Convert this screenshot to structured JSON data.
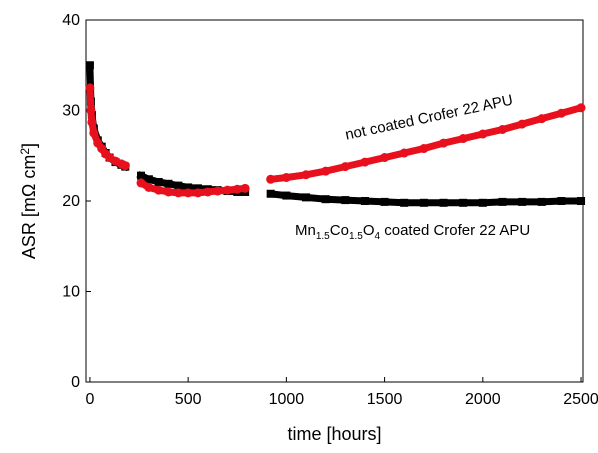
{
  "chart_data": {
    "type": "scatter",
    "xlabel": "time [hours]",
    "ylabel": "ASR [mΩ cm²]",
    "ylabel_parts": {
      "main": "ASR [mΩ cm",
      "sup": "2",
      "close": "]"
    },
    "xlim": [
      -20,
      2510
    ],
    "ylim": [
      0,
      40
    ],
    "xticks": [
      0,
      500,
      1000,
      1500,
      2000,
      2500
    ],
    "yticks": [
      0,
      10,
      20,
      30,
      40
    ],
    "grid": false,
    "series": [
      {
        "name": "Mn1.5Co1.5O4 coated Crofer 22 APU",
        "name_parts": {
          "pre": "Mn",
          "s1": "1.5",
          "mid": "Co",
          "s2": "1.5",
          "mid2": "O",
          "s3": "4",
          "post": " coated Crofer 22 APU"
        },
        "color": "#000000",
        "segments": [
          {
            "x": [
              0,
              5,
              10,
              20,
              40,
              60,
              80,
              100,
              130,
              160,
              180
            ],
            "y": [
              35,
              31,
              29.5,
              28,
              26.7,
              26,
              25.3,
              24.8,
              24.3,
              24,
              23.8
            ]
          },
          {
            "x": [
              260,
              300,
              350,
              400,
              450,
              500,
              550,
              600,
              650,
              700,
              750,
              790
            ],
            "y": [
              22.8,
              22.4,
              22.1,
              21.9,
              21.7,
              21.5,
              21.4,
              21.3,
              21.2,
              21.1,
              21.0,
              21.0
            ]
          },
          {
            "x": [
              920,
              1000,
              1100,
              1200,
              1300,
              1400,
              1500,
              1600,
              1700,
              1800,
              1900,
              2000,
              2100,
              2200,
              2300,
              2400,
              2500
            ],
            "y": [
              20.8,
              20.6,
              20.4,
              20.2,
              20.1,
              20.0,
              19.9,
              19.8,
              19.8,
              19.8,
              19.8,
              19.8,
              19.9,
              19.9,
              19.9,
              20.0,
              20.0
            ]
          }
        ]
      },
      {
        "name": "not coated Crofer 22 APU",
        "color": "#e8101c",
        "segments": [
          {
            "x": [
              0,
              5,
              10,
              20,
              40,
              60,
              80,
              100,
              130,
              160,
              180
            ],
            "y": [
              32.5,
              30,
              28.7,
              27.5,
              26.4,
              25.8,
              25.2,
              24.8,
              24.4,
              24.1,
              23.9
            ]
          },
          {
            "x": [
              260,
              300,
              350,
              400,
              450,
              500,
              550,
              600,
              650,
              700,
              750,
              790
            ],
            "y": [
              22.0,
              21.5,
              21.2,
              21.0,
              20.9,
              20.9,
              20.9,
              21.0,
              21.1,
              21.2,
              21.3,
              21.4
            ]
          },
          {
            "x": [
              920,
              1000,
              1100,
              1200,
              1300,
              1400,
              1500,
              1600,
              1700,
              1800,
              1900,
              2000,
              2100,
              2200,
              2300,
              2400,
              2500
            ],
            "y": [
              22.4,
              22.6,
              22.9,
              23.3,
              23.8,
              24.3,
              24.8,
              25.3,
              25.8,
              26.4,
              26.9,
              27.4,
              27.9,
              28.5,
              29.1,
              29.7,
              30.3
            ]
          }
        ]
      }
    ]
  }
}
